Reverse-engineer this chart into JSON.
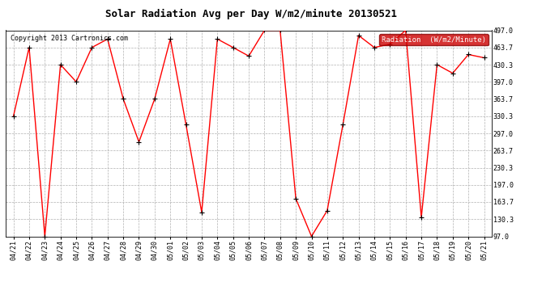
{
  "title": "Solar Radiation Avg per Day W/m2/minute 20130521",
  "copyright": "Copyright 2013 Cartronics.com",
  "legend_label": "Radiation  (W/m2/Minute)",
  "dates": [
    "04/21",
    "04/22",
    "04/23",
    "04/24",
    "04/25",
    "04/26",
    "04/27",
    "04/28",
    "04/29",
    "04/30",
    "05/01",
    "05/02",
    "05/03",
    "05/04",
    "05/05",
    "05/06",
    "05/07",
    "05/08",
    "05/09",
    "05/10",
    "05/11",
    "05/12",
    "05/13",
    "05/14",
    "05/15",
    "05/16",
    "05/17",
    "05/18",
    "05/19",
    "05/20",
    "05/21"
  ],
  "values": [
    330.3,
    463.7,
    97.0,
    430.3,
    397.0,
    463.7,
    480.0,
    363.7,
    280.3,
    363.7,
    480.0,
    313.7,
    143.7,
    480.0,
    463.7,
    447.0,
    497.0,
    497.0,
    170.3,
    97.0,
    147.0,
    313.7,
    487.0,
    463.7,
    470.0,
    497.0,
    133.7,
    430.3,
    413.7,
    450.0,
    443.7
  ],
  "ylim": [
    97.0,
    497.0
  ],
  "yticks": [
    97.0,
    130.3,
    163.7,
    197.0,
    230.3,
    263.7,
    297.0,
    330.3,
    363.7,
    397.0,
    430.3,
    463.7,
    497.0
  ],
  "line_color": "red",
  "marker_color": "black",
  "bg_color": "#ffffff",
  "plot_bg_color": "#ffffff",
  "grid_color": "#b0b0b0",
  "title_fontsize": 9,
  "tick_fontsize": 6,
  "copyright_fontsize": 6,
  "legend_bg": "#cc0000",
  "legend_text_color": "#ffffff",
  "legend_fontsize": 6.5
}
